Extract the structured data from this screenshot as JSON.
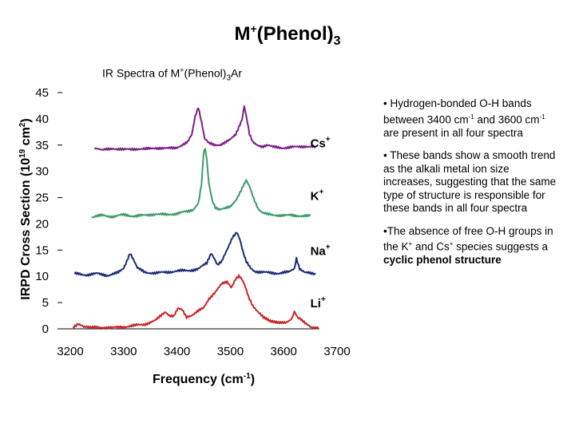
{
  "slide": {
    "title_main": "M",
    "title_sup": "+",
    "title_rest": "(Phenol)",
    "title_sub": "3"
  },
  "chart_title": {
    "prefix": "IR Spectra of M",
    "sup": "+",
    "middle": "(Phenol)",
    "sub": "3",
    "suffix": "Ar"
  },
  "bullets": [
    {
      "t1": "• Hydrogen-bonded O-H bands between 3400 cm",
      "sup1": "-1",
      "t2": " and 3600 cm",
      "sup2": "-1",
      "t3": " are present in all four spectra"
    },
    {
      "t1": "• These bands show a smooth trend as the alkali metal ion size increases, suggesting that the same type of structure is responsible for these bands in all four spectra"
    },
    {
      "t1": "•The absence of free O-H groups in the K",
      "sup1": "+",
      "t2": " and Cs",
      "sup2": "+",
      "t3": " species suggests a ",
      "bold": "cyclic phenol structure"
    }
  ],
  "chart_data": {
    "type": "line",
    "xlabel": "Frequency (cm-1)",
    "ylabel": "IRPD Cross Section (10^19 cm^2)",
    "xlim": [
      3200,
      3700
    ],
    "ylim": [
      0,
      45
    ],
    "xticks": [
      "3200",
      "3300",
      "3400",
      "3500",
      "3600",
      "3700"
    ],
    "yticks": [
      "0",
      "5",
      "10",
      "15",
      "20",
      "25",
      "30",
      "35",
      "40",
      "45"
    ],
    "grid": false,
    "series": [
      {
        "name": "Cs+",
        "color": "#7a1f86",
        "x": [
          3245,
          3260,
          3280,
          3300,
          3320,
          3340,
          3360,
          3380,
          3400,
          3410,
          3420,
          3428,
          3434,
          3440,
          3446,
          3452,
          3460,
          3470,
          3480,
          3490,
          3500,
          3510,
          3516,
          3522,
          3526,
          3530,
          3536,
          3542,
          3550,
          3560,
          3570,
          3580,
          3600,
          3620,
          3640,
          3660
        ],
        "y": [
          34.3,
          34.0,
          34.4,
          34.1,
          34.3,
          34.2,
          34.5,
          34.3,
          34.6,
          35.0,
          35.5,
          37.0,
          40.5,
          42.3,
          39.5,
          36.2,
          35.3,
          35.0,
          35.1,
          35.5,
          36.0,
          37.0,
          38.5,
          40.0,
          42.5,
          40.5,
          37.0,
          35.5,
          35.0,
          34.8,
          35.0,
          34.6,
          34.5,
          34.6,
          34.8,
          34.6
        ]
      },
      {
        "name": "K+",
        "color": "#3f9a6d",
        "x": [
          3240,
          3260,
          3280,
          3300,
          3320,
          3340,
          3360,
          3380,
          3400,
          3410,
          3420,
          3430,
          3440,
          3446,
          3450,
          3453,
          3456,
          3460,
          3466,
          3472,
          3480,
          3490,
          3500,
          3510,
          3518,
          3524,
          3530,
          3536,
          3544,
          3552,
          3560,
          3570,
          3580,
          3600,
          3620,
          3640,
          3650
        ],
        "y": [
          21.3,
          21.6,
          21.4,
          21.7,
          21.5,
          21.6,
          21.9,
          21.7,
          22.0,
          22.2,
          22.3,
          22.7,
          24.0,
          27.5,
          33.5,
          34.5,
          32.0,
          27.5,
          24.5,
          23.2,
          22.8,
          22.9,
          23.2,
          24.5,
          26.0,
          27.2,
          28.2,
          27.0,
          24.8,
          23.0,
          22.2,
          21.8,
          21.6,
          21.7,
          21.5,
          21.6,
          21.5
        ]
      },
      {
        "name": "Na+",
        "color": "#1c2a75",
        "x": [
          3208,
          3230,
          3250,
          3270,
          3290,
          3300,
          3306,
          3312,
          3318,
          3326,
          3340,
          3360,
          3380,
          3400,
          3420,
          3440,
          3456,
          3464,
          3470,
          3476,
          3484,
          3494,
          3504,
          3512,
          3518,
          3524,
          3530,
          3538,
          3546,
          3556,
          3570,
          3590,
          3610,
          3620,
          3624,
          3630,
          3640,
          3660
        ],
        "y": [
          10.5,
          10.3,
          10.5,
          10.2,
          10.7,
          11.5,
          13.0,
          14.5,
          13.3,
          11.5,
          10.8,
          10.6,
          10.8,
          11.0,
          11.1,
          11.4,
          12.5,
          14.5,
          13.5,
          12.2,
          12.8,
          15.0,
          17.5,
          18.5,
          17.0,
          14.5,
          12.7,
          11.6,
          11.0,
          10.8,
          10.7,
          10.6,
          10.8,
          11.5,
          13.5,
          11.5,
          10.7,
          10.4
        ]
      },
      {
        "name": "Li+",
        "color": "#c9252a",
        "x": [
          3205,
          3215,
          3225,
          3240,
          3260,
          3280,
          3300,
          3320,
          3340,
          3360,
          3370,
          3378,
          3386,
          3394,
          3402,
          3410,
          3418,
          3430,
          3450,
          3460,
          3472,
          3484,
          3494,
          3502,
          3510,
          3516,
          3522,
          3528,
          3534,
          3542,
          3552,
          3562,
          3575,
          3590,
          3605,
          3615,
          3620,
          3626,
          3632,
          3640,
          3652,
          3665
        ],
        "y": [
          0.4,
          0.9,
          0.3,
          0.2,
          0.3,
          0.2,
          0.4,
          0.6,
          0.9,
          1.6,
          2.5,
          3.3,
          2.6,
          2.4,
          3.8,
          3.6,
          2.3,
          2.7,
          4.0,
          5.8,
          7.0,
          8.5,
          9.0,
          8.0,
          9.5,
          10.0,
          9.3,
          8.0,
          6.2,
          4.5,
          3.2,
          2.1,
          1.4,
          1.2,
          1.3,
          1.8,
          3.4,
          2.3,
          1.8,
          1.0,
          0.3,
          0.1
        ]
      }
    ],
    "annotations": [
      {
        "text": "Cs",
        "sup": "+",
        "x": 3650,
        "y": 35.5
      },
      {
        "text": "K",
        "sup": "+",
        "x": 3650,
        "y": 25.5
      },
      {
        "text": "Na",
        "sup": "+",
        "x": 3650,
        "y": 15.0
      },
      {
        "text": "Li",
        "sup": "+",
        "x": 3650,
        "y": 5.0
      }
    ]
  }
}
